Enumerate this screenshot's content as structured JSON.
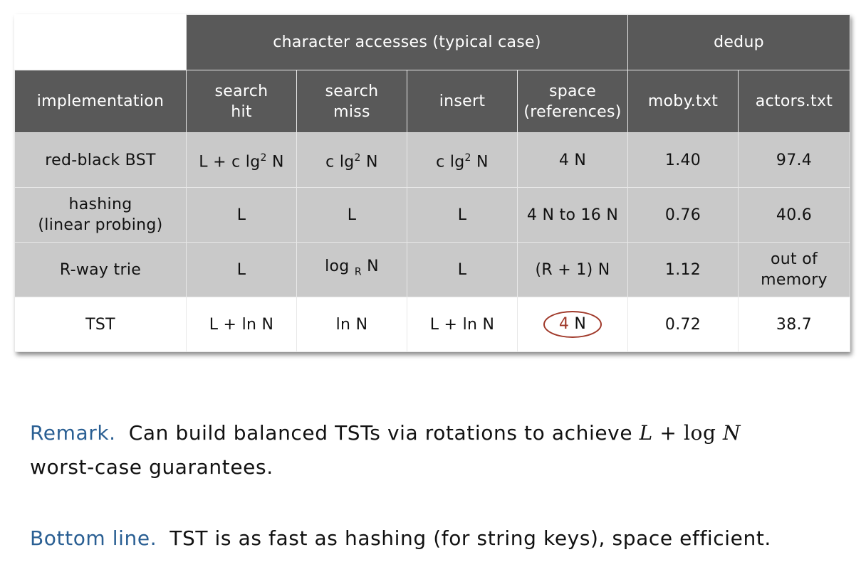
{
  "table": {
    "group_headers": {
      "character_accesses": "character accesses (typical case)",
      "dedup": "dedup"
    },
    "columns": {
      "implementation": "implementation",
      "search_hit": [
        "search",
        "hit"
      ],
      "search_miss": [
        "search",
        "miss"
      ],
      "insert": "insert",
      "space": [
        "space",
        "(references)"
      ],
      "moby": "moby.txt",
      "actors": "actors.txt"
    },
    "rows": [
      {
        "implementation": "red-black BST",
        "search_hit": {
          "a": "L + c lg",
          "sup": "2",
          "b": " N"
        },
        "search_miss": {
          "a": "c lg",
          "sup": "2",
          "b": " N"
        },
        "insert": {
          "a": "c lg",
          "sup": "2",
          "b": " N"
        },
        "space": "4 N",
        "moby": "1.40",
        "actors": "97.4"
      },
      {
        "implementation": [
          "hashing",
          "(linear probing)"
        ],
        "search_hit": "L",
        "search_miss": "L",
        "insert": "L",
        "space": "4 N to 16 N",
        "moby": "0.76",
        "actors": "40.6"
      },
      {
        "implementation": "R-way trie",
        "search_hit": "L",
        "search_miss": {
          "a": "log",
          "sub": "R",
          "b": "N"
        },
        "insert": "L",
        "space": "(R + 1) N",
        "moby": "1.12",
        "actors": [
          "out of",
          "memory"
        ]
      },
      {
        "implementation": "TST",
        "search_hit": "L + ln N",
        "search_miss": "ln N",
        "insert": "L + ln N",
        "space": {
          "num": "4",
          "rest": " N"
        },
        "moby": "0.72",
        "actors": "38.7"
      }
    ]
  },
  "remark": {
    "label": "Remark.",
    "text": "Can build balanced TSTs via rotations to achieve",
    "math_L": "L",
    "math_plus": "+",
    "math_log": "log",
    "math_N": "N",
    "text2": "worst-case guarantees."
  },
  "bottom_line": {
    "label": "Bottom line.",
    "text": "TST is as fast as hashing (for string keys), space efficient."
  },
  "colors": {
    "header_bg": "#595959",
    "row_gray": "#c9c9c9",
    "keyword_blue": "#2a5f93",
    "circle_red": "#a0392a"
  }
}
